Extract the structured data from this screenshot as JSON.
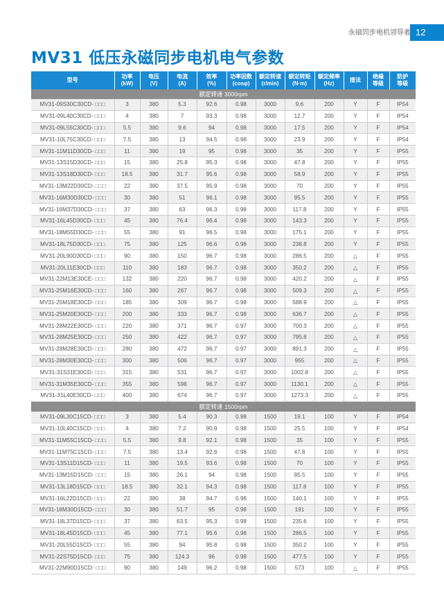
{
  "header": {
    "tagline": "永磁同步电机领导者",
    "page_number": "12"
  },
  "title": "MV31 低压永磁同步电机电气参数",
  "table": {
    "columns": [
      "型号",
      "功率\n(kW)",
      "电压\n(V)",
      "电流\n(A)",
      "效率\n(%)",
      "功率因数\n(cosφ)",
      "额定转速\n(r/min)",
      "额定转矩\n(N·m)",
      "额定频率\n(Hz)",
      "接法",
      "绝缘\n等级",
      "防护\n等级"
    ],
    "sections": [
      {
        "label": "额定转速 3000rpm",
        "rows": [
          [
            "MV31-09S30C30CD- □□□",
            "3",
            "380",
            "5.3",
            "92.6",
            "0.98",
            "3000",
            "9.6",
            "200",
            "Y",
            "F",
            "IP54"
          ],
          [
            "MV31-09L40C30CD- □□□",
            "4",
            "380",
            "7",
            "93.3",
            "0.98",
            "3000",
            "12.7",
            "200",
            "Y",
            "F",
            "IP54"
          ],
          [
            "MV31-09L55C30CD- □□□",
            "5.5",
            "380",
            "9.6",
            "94",
            "0.98",
            "3000",
            "17.5",
            "200",
            "Y",
            "F",
            "IP54"
          ],
          [
            "MV31-10L75C30CD- □□□",
            "7.5",
            "380",
            "13",
            "94.5",
            "0.98",
            "3000",
            "23.9",
            "200",
            "Y",
            "F",
            "IP54"
          ],
          [
            "MV31-11M11D30CD- □□□",
            "11",
            "380",
            "19",
            "95",
            "0.98",
            "3000",
            "35",
            "200",
            "Y",
            "F",
            "IP55"
          ],
          [
            "MV31-13S15D30CD- □□□",
            "15",
            "380",
            "25.8",
            "95.3",
            "0.98",
            "3000",
            "47.8",
            "200",
            "Y",
            "F",
            "IP55"
          ],
          [
            "MV31-13S18D30CD- □□□",
            "18.5",
            "380",
            "31.7",
            "95.6",
            "0.98",
            "3000",
            "58.9",
            "200",
            "Y",
            "F",
            "IP55"
          ],
          [
            "MV31-13M22D30CD- □□□",
            "22",
            "380",
            "37.5",
            "95.9",
            "0.98",
            "3000",
            "70",
            "200",
            "Y",
            "F",
            "IP55"
          ],
          [
            "MV31-16M30D30CD- □□□",
            "30",
            "380",
            "51",
            "96.1",
            "0.98",
            "3000",
            "95.5",
            "200",
            "Y",
            "F",
            "IP55"
          ],
          [
            "MV31-16M37D30CD- □□□",
            "37",
            "380",
            "63",
            "96.3",
            "0.98",
            "3000",
            "117.8",
            "200",
            "Y",
            "F",
            "IP55"
          ],
          [
            "MV31-16L45D30CD- □□□",
            "45",
            "380",
            "76.4",
            "96.4",
            "0.98",
            "3000",
            "143.3",
            "200",
            "Y",
            "F",
            "IP55"
          ],
          [
            "MV31-18M55D30CD- □□□",
            "55",
            "380",
            "91",
            "96.5",
            "0.98",
            "3000",
            "175.1",
            "200",
            "Y",
            "F",
            "IP55"
          ],
          [
            "MV31-18L75D30CD- □□□",
            "75",
            "380",
            "125",
            "96.6",
            "0.98",
            "3000",
            "238.8",
            "200",
            "Y",
            "F",
            "IP55"
          ],
          [
            "MV31-20L90D30CD- □□□",
            "90",
            "380",
            "150",
            "96.7",
            "0.98",
            "3000",
            "286.5",
            "200",
            "△",
            "F",
            "IP55"
          ],
          [
            "MV31-20L11E30CD- □□□",
            "110",
            "380",
            "183",
            "96.7",
            "0.98",
            "3000",
            "350.2",
            "200",
            "△",
            "F",
            "IP55"
          ],
          [
            "MV31-22M13E30CE- □□□",
            "132",
            "380",
            "220",
            "96.7",
            "0.98",
            "3000",
            "420.2",
            "200",
            "△",
            "F",
            "IP55"
          ],
          [
            "MV31-25M16E30CD- □□□",
            "160",
            "380",
            "267",
            "96.7",
            "0.98",
            "3000",
            "509.3",
            "200",
            "△",
            "F",
            "IP55"
          ],
          [
            "MV31-25M18E30CD- □□□",
            "185",
            "380",
            "309",
            "96.7",
            "0.98",
            "3000",
            "588.9",
            "200",
            "△",
            "F",
            "IP55"
          ],
          [
            "MV31-25M20E30CD- □□□",
            "200",
            "380",
            "333",
            "96.7",
            "0.98",
            "3000",
            "636.7",
            "200",
            "△",
            "F",
            "IP55"
          ],
          [
            "MV31-28M22E30CD- □□□",
            "220",
            "380",
            "371",
            "96.7",
            "0.97",
            "3000",
            "700.3",
            "200",
            "△",
            "F",
            "IP55"
          ],
          [
            "MV31-28M25E30CD- □□□",
            "250",
            "380",
            "422",
            "96.7",
            "0.97",
            "3000",
            "795.8",
            "200",
            "△",
            "F",
            "IP55"
          ],
          [
            "MV31-28M28E30CD- □□□",
            "280",
            "380",
            "472",
            "96.7",
            "0.97",
            "3000",
            "891.3",
            "200",
            "△",
            "F",
            "IP55"
          ],
          [
            "MV31-28M30E30CD- □□□",
            "300",
            "380",
            "506",
            "96.7",
            "0.97",
            "3000",
            "955",
            "200",
            "△",
            "F",
            "IP55"
          ],
          [
            "MV31-31S31E30CD- □□□",
            "315",
            "380",
            "531",
            "96.7",
            "0.97",
            "3000",
            "1002.8",
            "200",
            "△",
            "F",
            "IP55"
          ],
          [
            "MV31-31M35E30CD- □□□",
            "355",
            "380",
            "598",
            "96.7",
            "0.97",
            "3000",
            "1130.1",
            "200",
            "△",
            "F",
            "IP55"
          ],
          [
            "MV31-31L40E30CD- □□□",
            "400",
            "380",
            "674",
            "96.7",
            "0.97",
            "3000",
            "1273.3",
            "200",
            "△",
            "F",
            "IP55"
          ]
        ]
      },
      {
        "label": "额定转速 1500rpm",
        "rows": [
          [
            "MV31-09L30C15CD- □□□",
            "3",
            "380",
            "5.4",
            "90.3",
            "0.98",
            "1500",
            "19.1",
            "100",
            "Y",
            "F",
            "IP54"
          ],
          [
            "MV31-10L40C15CD- □□□",
            "4",
            "380",
            "7.2",
            "90.9",
            "0.98",
            "1500",
            "25.5",
            "100",
            "Y",
            "F",
            "IP54"
          ],
          [
            "MV31-11M55C15CD- □□□",
            "5.5",
            "380",
            "9.8",
            "92.1",
            "0.98",
            "1500",
            "35",
            "100",
            "Y",
            "F",
            "IP55"
          ],
          [
            "MV31-11M75C15CD- □□□",
            "7.5",
            "380",
            "13.4",
            "92.6",
            "0.98",
            "1500",
            "47.8",
            "100",
            "Y",
            "F",
            "IP55"
          ],
          [
            "MV31-13S11D15CD- □□□",
            "11",
            "380",
            "19.5",
            "93.6",
            "0.98",
            "1500",
            "70",
            "100",
            "Y",
            "F",
            "IP55"
          ],
          [
            "MV31-13M15D15CD- □□□",
            "15",
            "380",
            "26.1",
            "94",
            "0.98",
            "1500",
            "95.5",
            "100",
            "Y",
            "F",
            "IP55"
          ],
          [
            "MV31-13L18D15CD- □□□",
            "18.5",
            "380",
            "32.1",
            "94.3",
            "0.98",
            "1500",
            "117.8",
            "100",
            "Y",
            "F",
            "IP55"
          ],
          [
            "MV31-16L22D15CD- □□□",
            "22",
            "380",
            "38",
            "94.7",
            "0.98",
            "1500",
            "140.1",
            "100",
            "Y",
            "F",
            "IP55"
          ],
          [
            "MV31-18M30D15CD- □□□",
            "30",
            "380",
            "51.7",
            "95",
            "0.98",
            "1500",
            "191",
            "100",
            "Y",
            "F",
            "IP55"
          ],
          [
            "MV31-18L37D15CD- □□□",
            "37",
            "380",
            "63.5",
            "95.3",
            "0.98",
            "1500",
            "235.6",
            "100",
            "Y",
            "F",
            "IP55"
          ],
          [
            "MV31-18L45D15CD- □□□",
            "45",
            "380",
            "77.1",
            "95.6",
            "0.98",
            "1500",
            "286.5",
            "100",
            "Y",
            "F",
            "IP55"
          ],
          [
            "MV31-20L55D15CD- □□□",
            "55",
            "380",
            "94",
            "95.8",
            "0.98",
            "1500",
            "350.2",
            "100",
            "Y",
            "F",
            "IP55"
          ],
          [
            "MV31-22S75D15CD- □□□",
            "75",
            "380",
            "124.3",
            "96",
            "0.98",
            "1500",
            "477.5",
            "100",
            "Y",
            "F",
            "IP55"
          ],
          [
            "MV31-22M90D15CD- □□□",
            "90",
            "380",
            "149",
            "96.2",
            "0.98",
            "1500",
            "573",
            "100",
            "△",
            "F",
            "IP55"
          ]
        ]
      }
    ]
  }
}
